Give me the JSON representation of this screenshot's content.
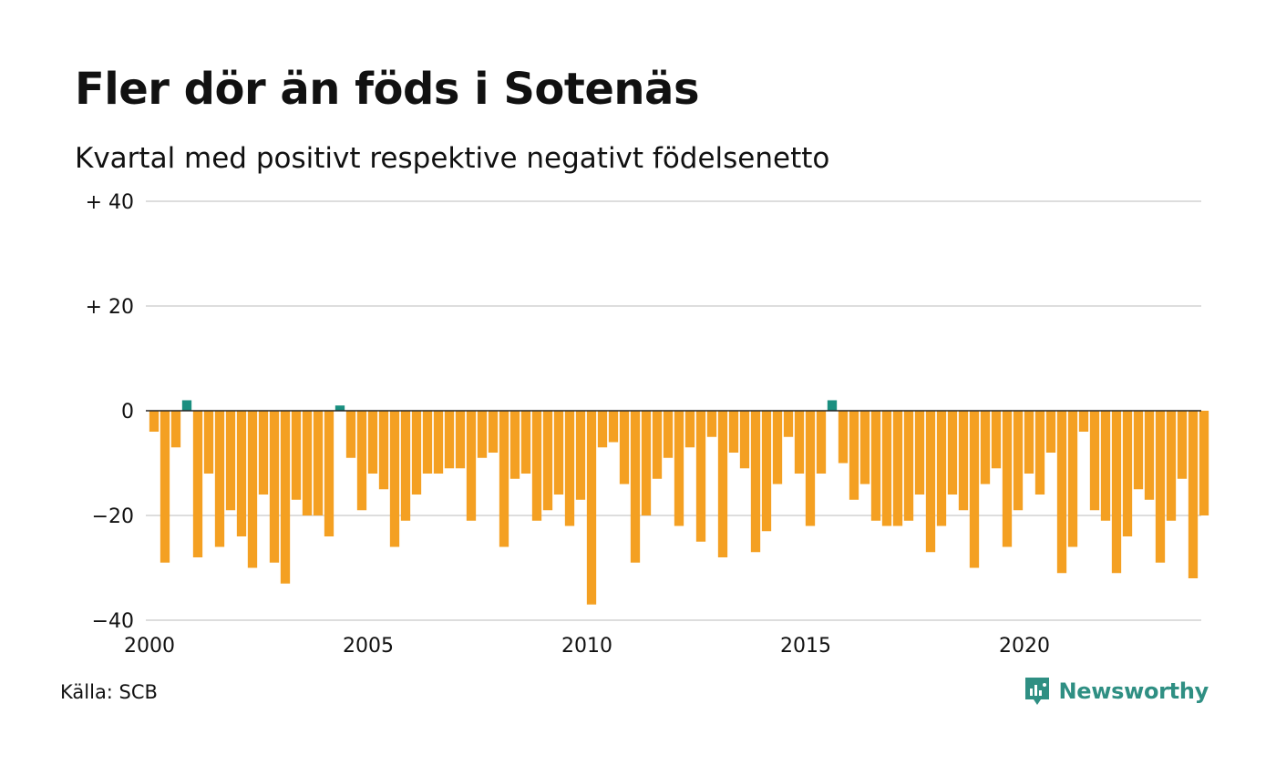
{
  "title": "Fler dör än föds i Sotenäs",
  "subtitle": "Kvartal med positivt respektive negativt födelsenetto",
  "source": "Källa: SCB",
  "brand": "Newsworthy",
  "colors": {
    "positive": "#1a8f80",
    "negative": "#f4a022",
    "grid": "#dddddd",
    "zero": "#222222",
    "brand": "#2f8f83"
  },
  "chart_data": {
    "type": "bar",
    "title": "Fler dör än föds i Sotenäs",
    "subtitle": "Kvartal med positivt respektive negativt födelsenetto",
    "xlabel": "",
    "ylabel": "",
    "ylim": [
      -40,
      40
    ],
    "yticks": [
      {
        "value": 40,
        "label": "+ 40"
      },
      {
        "value": 20,
        "label": "+ 20"
      },
      {
        "value": 0,
        "label": "0"
      },
      {
        "value": -20,
        "label": "−20"
      },
      {
        "value": -40,
        "label": "−40"
      }
    ],
    "xticks": [
      "2000",
      "2005",
      "2010",
      "2015",
      "2020"
    ],
    "start": "2000 Q1",
    "frequency": "quarter",
    "grid": true,
    "legend": "none",
    "values": [
      -4,
      -29,
      -7,
      2,
      -28,
      -12,
      -26,
      -19,
      -24,
      -30,
      -16,
      -29,
      -33,
      -17,
      -20,
      -20,
      -24,
      1,
      -9,
      -19,
      -12,
      -15,
      -26,
      -21,
      -16,
      -12,
      -12,
      -11,
      -11,
      -21,
      -9,
      -8,
      -26,
      -13,
      -12,
      -21,
      -19,
      -16,
      -22,
      -17,
      -37,
      -7,
      -6,
      -14,
      -29,
      -20,
      -13,
      -9,
      -22,
      -7,
      -25,
      -5,
      -28,
      -8,
      -11,
      -27,
      -23,
      -14,
      -5,
      -12,
      -22,
      -12,
      2,
      -10,
      -17,
      -14,
      -21,
      -22,
      -22,
      -21,
      -16,
      -27,
      -22,
      -16,
      -19,
      -30,
      -14,
      -11,
      -26,
      -19,
      -12,
      -16,
      -8,
      -31,
      -26,
      -4,
      -19,
      -21,
      -31,
      -24,
      -15,
      -17,
      -29,
      -21,
      -13,
      -32,
      -20
    ]
  }
}
